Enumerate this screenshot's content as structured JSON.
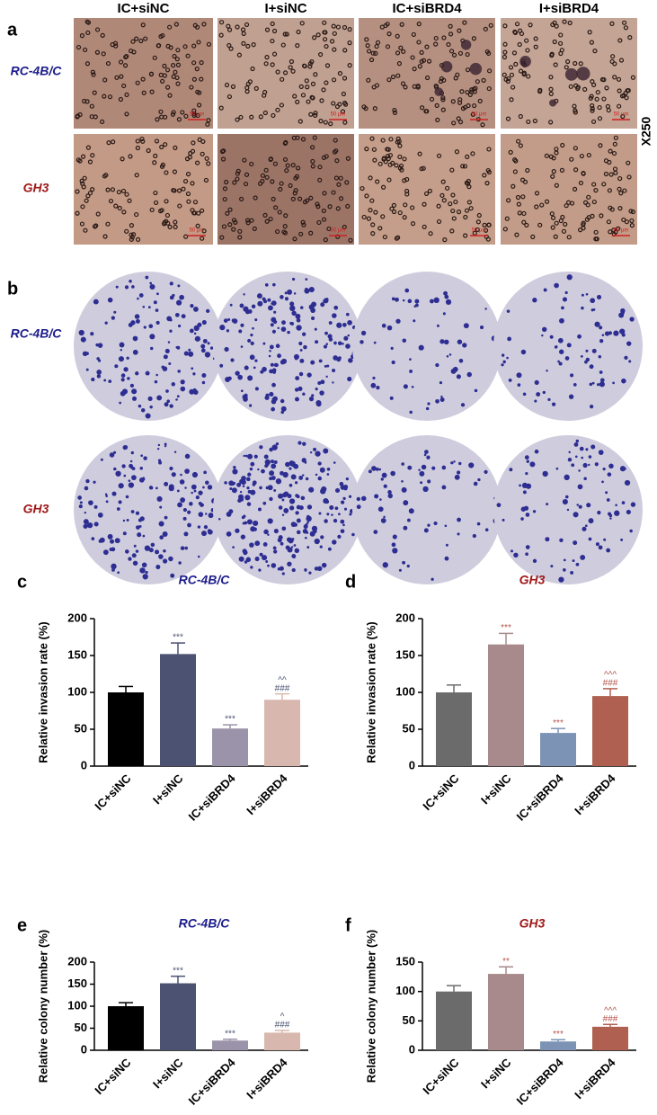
{
  "panel_a": {
    "label": "a",
    "columns": [
      "IC+siNC",
      "I+siNC",
      "IC+siBRD4",
      "I+siBRD4"
    ],
    "rows": [
      "RC-4B/C",
      "GH3"
    ],
    "magnification": "X250",
    "scale_bar": "50 μm"
  },
  "panel_b": {
    "label": "b",
    "rows": [
      "RC-4B/C",
      "GH3"
    ]
  },
  "chart_data": [
    {
      "type": "bar",
      "panel_label": "c",
      "title": "RC-4B/C",
      "title_color": "#1c1c8c",
      "y_label": "Relative invasion rate (%)",
      "categories": [
        "IC+siNC",
        "I+siNC",
        "IC+siBRD4",
        "I+siBRD4"
      ],
      "values": [
        100,
        152,
        51,
        90
      ],
      "errors": [
        8,
        15,
        5,
        8
      ],
      "colors": [
        "#000000",
        "#4b5272",
        "#9b93a9",
        "#d8b8ae"
      ],
      "annotations": [
        null,
        [
          "***"
        ],
        [
          "***"
        ],
        [
          "^^",
          "###"
        ]
      ],
      "annotation_color": "#4b5272",
      "ylim": [
        0,
        200
      ],
      "yticks": [
        0,
        50,
        100,
        150,
        200
      ]
    },
    {
      "type": "bar",
      "panel_label": "d",
      "title": "GH3",
      "title_color": "#a01818",
      "y_label": "Relative invasion rate (%)",
      "categories": [
        "IC+siNC",
        "I+siNC",
        "IC+siBRD4",
        "I+siBRD4"
      ],
      "values": [
        100,
        165,
        45,
        95
      ],
      "errors": [
        10,
        15,
        6,
        10
      ],
      "colors": [
        "#6b6b6b",
        "#a88a8c",
        "#7d93b5",
        "#b06050"
      ],
      "annotations": [
        null,
        [
          "***"
        ],
        [
          "***"
        ],
        [
          "^^^",
          "###"
        ]
      ],
      "annotation_color": "#b5524a",
      "ylim": [
        0,
        200
      ],
      "yticks": [
        0,
        50,
        100,
        150,
        200
      ]
    },
    {
      "type": "bar",
      "panel_label": "e",
      "title": "RC-4B/C",
      "title_color": "#1c1c8c",
      "y_label": "Relative colony number (%)",
      "categories": [
        "IC+siNC",
        "I+siNC",
        "IC+siBRD4",
        "I+siBRD4"
      ],
      "values": [
        100,
        152,
        22,
        40
      ],
      "errors": [
        8,
        16,
        3,
        5
      ],
      "colors": [
        "#000000",
        "#4b5272",
        "#9b93a9",
        "#d8b8ae"
      ],
      "annotations": [
        null,
        [
          "***"
        ],
        [
          "***"
        ],
        [
          "^",
          "###"
        ]
      ],
      "annotation_color": "#4b5272",
      "ylim": [
        0,
        200
      ],
      "yticks": [
        0,
        50,
        100,
        150,
        200
      ]
    },
    {
      "type": "bar",
      "panel_label": "f",
      "title": "GH3",
      "title_color": "#a01818",
      "y_label": "Relative colony number (%)",
      "categories": [
        "IC+siNC",
        "I+siNC",
        "IC+siBRD4",
        "I+siBRD4"
      ],
      "values": [
        100,
        130,
        15,
        40
      ],
      "errors": [
        10,
        12,
        3,
        4
      ],
      "colors": [
        "#6b6b6b",
        "#a88a8c",
        "#7d93b5",
        "#b06050"
      ],
      "annotations": [
        null,
        [
          "**"
        ],
        [
          "***"
        ],
        [
          "^^^",
          "###"
        ]
      ],
      "annotation_color": "#b5524a",
      "ylim": [
        0,
        150
      ],
      "yticks": [
        0,
        50,
        100,
        150
      ]
    }
  ]
}
